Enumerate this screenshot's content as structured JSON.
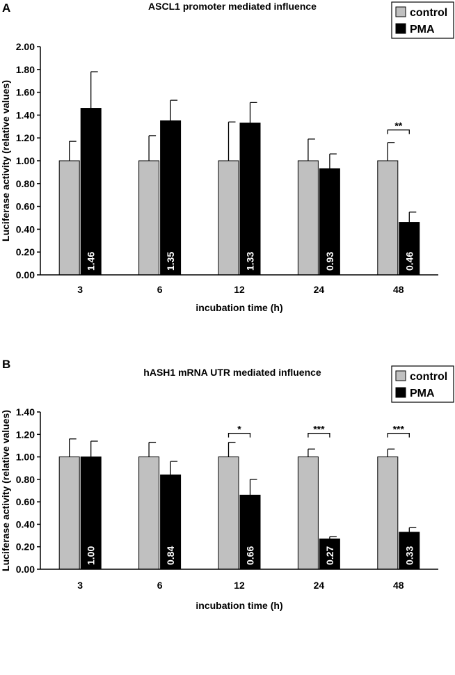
{
  "colors": {
    "control": "#c0c0c0",
    "pma": "#000000",
    "axis": "#000000",
    "label_on_bar": "#ffffff"
  },
  "chart_data": [
    {
      "panel_label": "A",
      "type": "bar",
      "title": "ASCL1 promoter mediated influence",
      "xlabel": "incubation time (h)",
      "ylabel": "Luciferase activity (relative values)",
      "ylim": [
        0,
        2.0
      ],
      "yticks": [
        "0.00",
        "0.20",
        "0.40",
        "0.60",
        "0.80",
        "1.00",
        "1.20",
        "1.40",
        "1.60",
        "1.80",
        "2.00"
      ],
      "categories": [
        "3",
        "6",
        "12",
        "24",
        "48"
      ],
      "legend": [
        "control",
        "PMA"
      ],
      "legend_position": "top-right",
      "series": [
        {
          "name": "control",
          "values": [
            1.0,
            1.0,
            1.0,
            1.0,
            1.0
          ],
          "errors": [
            0.17,
            0.22,
            0.34,
            0.19,
            0.16
          ]
        },
        {
          "name": "PMA",
          "values": [
            1.46,
            1.35,
            1.33,
            0.93,
            0.46
          ],
          "errors": [
            0.32,
            0.18,
            0.18,
            0.13,
            0.09
          ]
        }
      ],
      "bar_labels": [
        "1.46",
        "1.35",
        "1.33",
        "0.93",
        "0.46"
      ],
      "significance": [
        {
          "category": "48",
          "label": "**",
          "level": 1.27
        }
      ]
    },
    {
      "panel_label": "B",
      "type": "bar",
      "title": "hASH1 mRNA UTR mediated influence",
      "xlabel": "incubation time (h)",
      "ylabel": "Luciferase activity (relative values)",
      "ylim": [
        0,
        1.4
      ],
      "yticks": [
        "0.00",
        "0.20",
        "0.40",
        "0.60",
        "0.80",
        "1.00",
        "1.20",
        "1.40"
      ],
      "categories": [
        "3",
        "6",
        "12",
        "24",
        "48"
      ],
      "legend": [
        "control",
        "PMA"
      ],
      "legend_position": "top-right",
      "series": [
        {
          "name": "control",
          "values": [
            1.0,
            1.0,
            1.0,
            1.0,
            1.0
          ],
          "errors": [
            0.16,
            0.13,
            0.13,
            0.07,
            0.07
          ]
        },
        {
          "name": "PMA",
          "values": [
            1.0,
            0.84,
            0.66,
            0.27,
            0.33
          ],
          "errors": [
            0.14,
            0.12,
            0.14,
            0.02,
            0.04
          ]
        }
      ],
      "bar_labels": [
        "1.00",
        "0.84",
        "0.66",
        "0.27",
        "0.33"
      ],
      "significance": [
        {
          "category": "12",
          "label": "*",
          "level": 1.21
        },
        {
          "category": "24",
          "label": "***",
          "level": 1.21
        },
        {
          "category": "48",
          "label": "***",
          "level": 1.21
        }
      ]
    }
  ]
}
